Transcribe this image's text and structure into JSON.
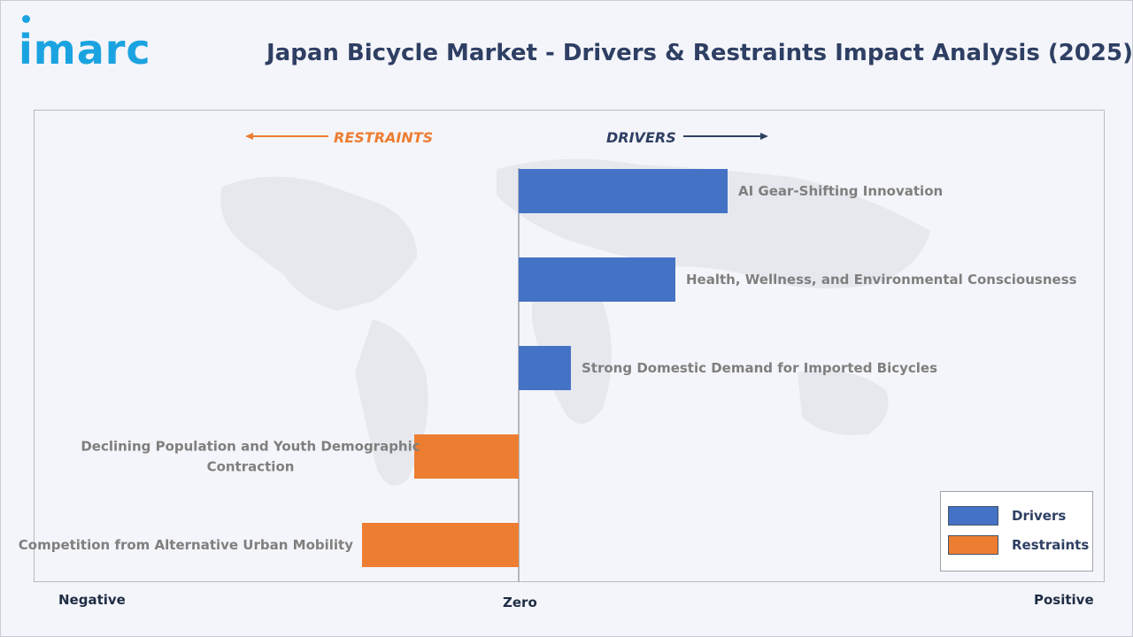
{
  "header": {
    "logo_text": "imarc",
    "title": "Japan Bicycle Market - Drivers & Restraints Impact Analysis (2025)"
  },
  "direction_labels": {
    "restraints": "RESTRAINTS",
    "drivers": "DRIVERS"
  },
  "axis_words": {
    "negative": "Negative",
    "zero": "Zero",
    "positive": "Positive"
  },
  "legend": {
    "drivers": "Drivers",
    "restraints": "Restraints"
  },
  "colors": {
    "drivers": "#4472c4",
    "restraints": "#ed7d31",
    "restraints_text": "#ed7d31",
    "drivers_text": "#2e3f63",
    "label_text": "#7f7f7f",
    "axis_line": "#9fa3ab"
  },
  "chart_data": {
    "type": "bar",
    "orientation": "horizontal",
    "title": "Japan Bicycle Market - Drivers & Restraints Impact Analysis (2025)",
    "xlim": [
      -1,
      1
    ],
    "grid": false,
    "legend_position": "bottom-right",
    "series": [
      {
        "name": "Drivers",
        "values": [
          0.4,
          0.3,
          0.1,
          null,
          null
        ]
      },
      {
        "name": "Restraints",
        "values": [
          null,
          null,
          null,
          -0.2,
          -0.3
        ]
      }
    ],
    "categories": [
      "AI Gear-Shifting Innovation",
      "Health, Wellness, and Environmental Consciousness",
      "Strong Domestic Demand for Imported Bicycles",
      "Declining Population and Youth Demographic Contraction",
      "Competition from Alternative Urban Mobility"
    ],
    "category_label_lines": [
      [
        "AI Gear-Shifting Innovation"
      ],
      [
        "Health, Wellness, and Environmental Consciousness"
      ],
      [
        "Strong Domestic Demand for Imported Bicycles"
      ],
      [
        "Declining Population and Youth Demographic",
        "Contraction"
      ],
      [
        "Competition from Alternative Urban Mobility"
      ]
    ]
  }
}
